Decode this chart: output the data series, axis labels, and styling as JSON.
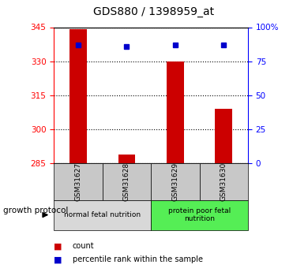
{
  "title": "GDS880 / 1398959_at",
  "samples": [
    "GSM31627",
    "GSM31628",
    "GSM31629",
    "GSM31630"
  ],
  "bar_values": [
    344.0,
    289.0,
    330.0,
    309.0
  ],
  "percentile_values": [
    87,
    86,
    87,
    87
  ],
  "ylim_left": [
    285,
    345
  ],
  "ylim_right": [
    0,
    100
  ],
  "yticks_left": [
    285,
    300,
    315,
    330,
    345
  ],
  "yticks_right": [
    0,
    25,
    50,
    75,
    100
  ],
  "bar_color": "#cc0000",
  "dot_color": "#0000cc",
  "group1_label": "normal fetal nutrition",
  "group2_label": "protein poor fetal\nnutrition",
  "group_header": "growth protocol",
  "group1_bg": "#d8d8d8",
  "group2_bg": "#55ee55",
  "legend_bar_label": "count",
  "legend_dot_label": "percentile rank within the sample",
  "sample_label_bg": "#c8c8c8"
}
